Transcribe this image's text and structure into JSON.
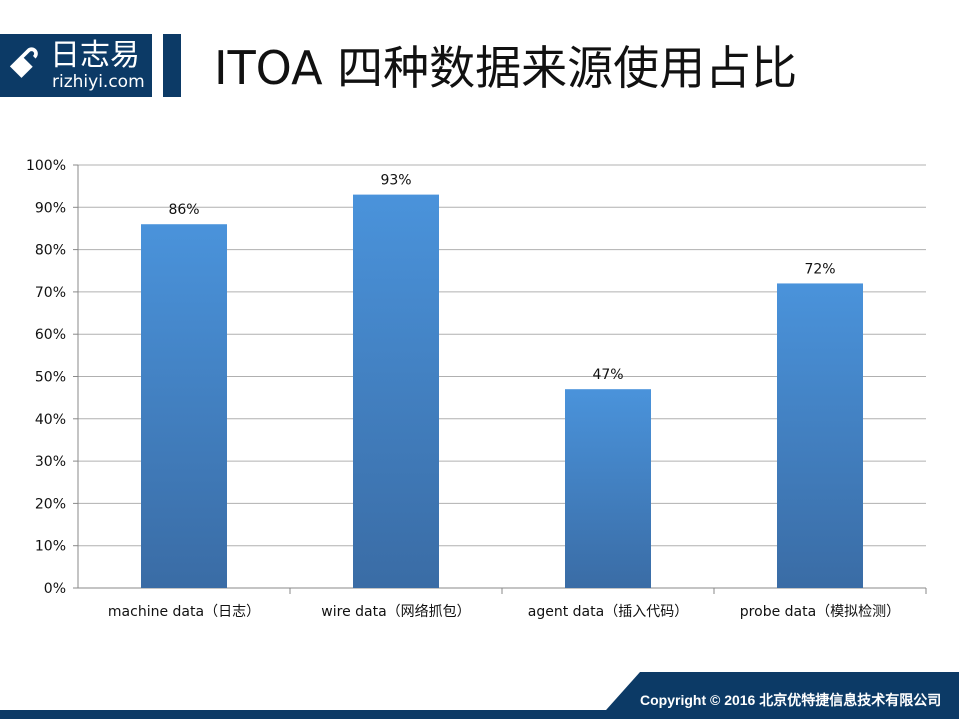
{
  "logo": {
    "mark": "&",
    "cn": "日志易",
    "en": "rizhiyi.com"
  },
  "title": "ITOA 四种数据来源使用占比",
  "footer": "Copyright © 2016 北京优特捷信息技术有限公司",
  "colors": {
    "brand": "#0c3a66",
    "bar_top": "#4a93db",
    "bar_bottom": "#3a6ca5"
  },
  "chart_data": {
    "type": "bar",
    "categories": [
      "machine data（日志）",
      "wire data（网络抓包）",
      "agent data（插入代码）",
      "probe data（模拟检测）"
    ],
    "values": [
      86,
      93,
      47,
      72
    ],
    "data_labels": [
      "86%",
      "93%",
      "47%",
      "72%"
    ],
    "yticks": [
      "0%",
      "10%",
      "20%",
      "30%",
      "40%",
      "50%",
      "60%",
      "70%",
      "80%",
      "90%",
      "100%"
    ],
    "ylim": [
      0,
      100
    ],
    "grid": true
  }
}
